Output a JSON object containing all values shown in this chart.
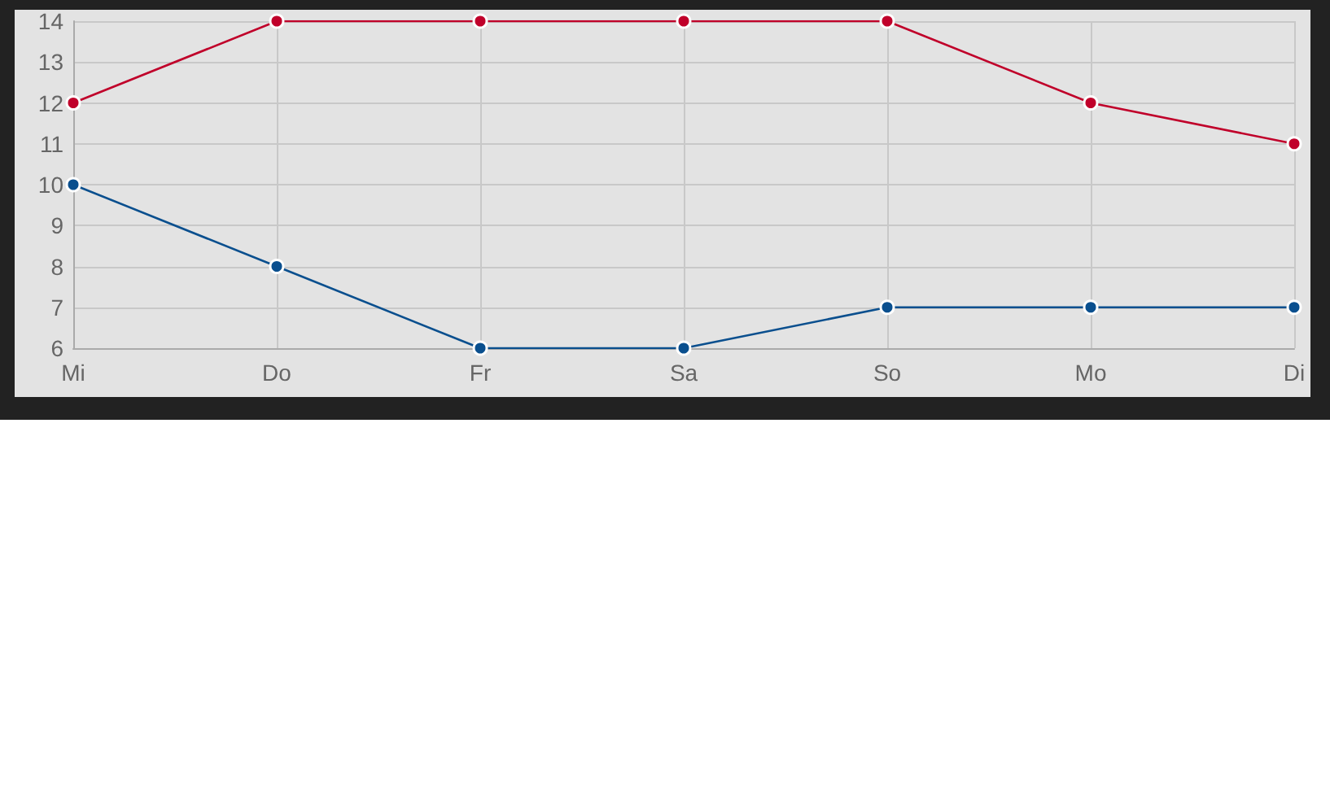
{
  "chart_data": {
    "type": "line",
    "categories": [
      "Mi",
      "Do",
      "Fr",
      "Sa",
      "So",
      "Mo",
      "Di"
    ],
    "series": [
      {
        "color": "#c0002a",
        "values": [
          12,
          14,
          14,
          14,
          14,
          12,
          11
        ]
      },
      {
        "color": "#0a4f8e",
        "values": [
          10,
          8,
          6,
          6,
          7,
          7,
          7
        ]
      }
    ],
    "ylim": [
      6,
      14
    ],
    "yticks": [
      6,
      7,
      8,
      9,
      10,
      11,
      12,
      13,
      14
    ],
    "grid": true,
    "marker": "circle",
    "line_style": "solid"
  }
}
